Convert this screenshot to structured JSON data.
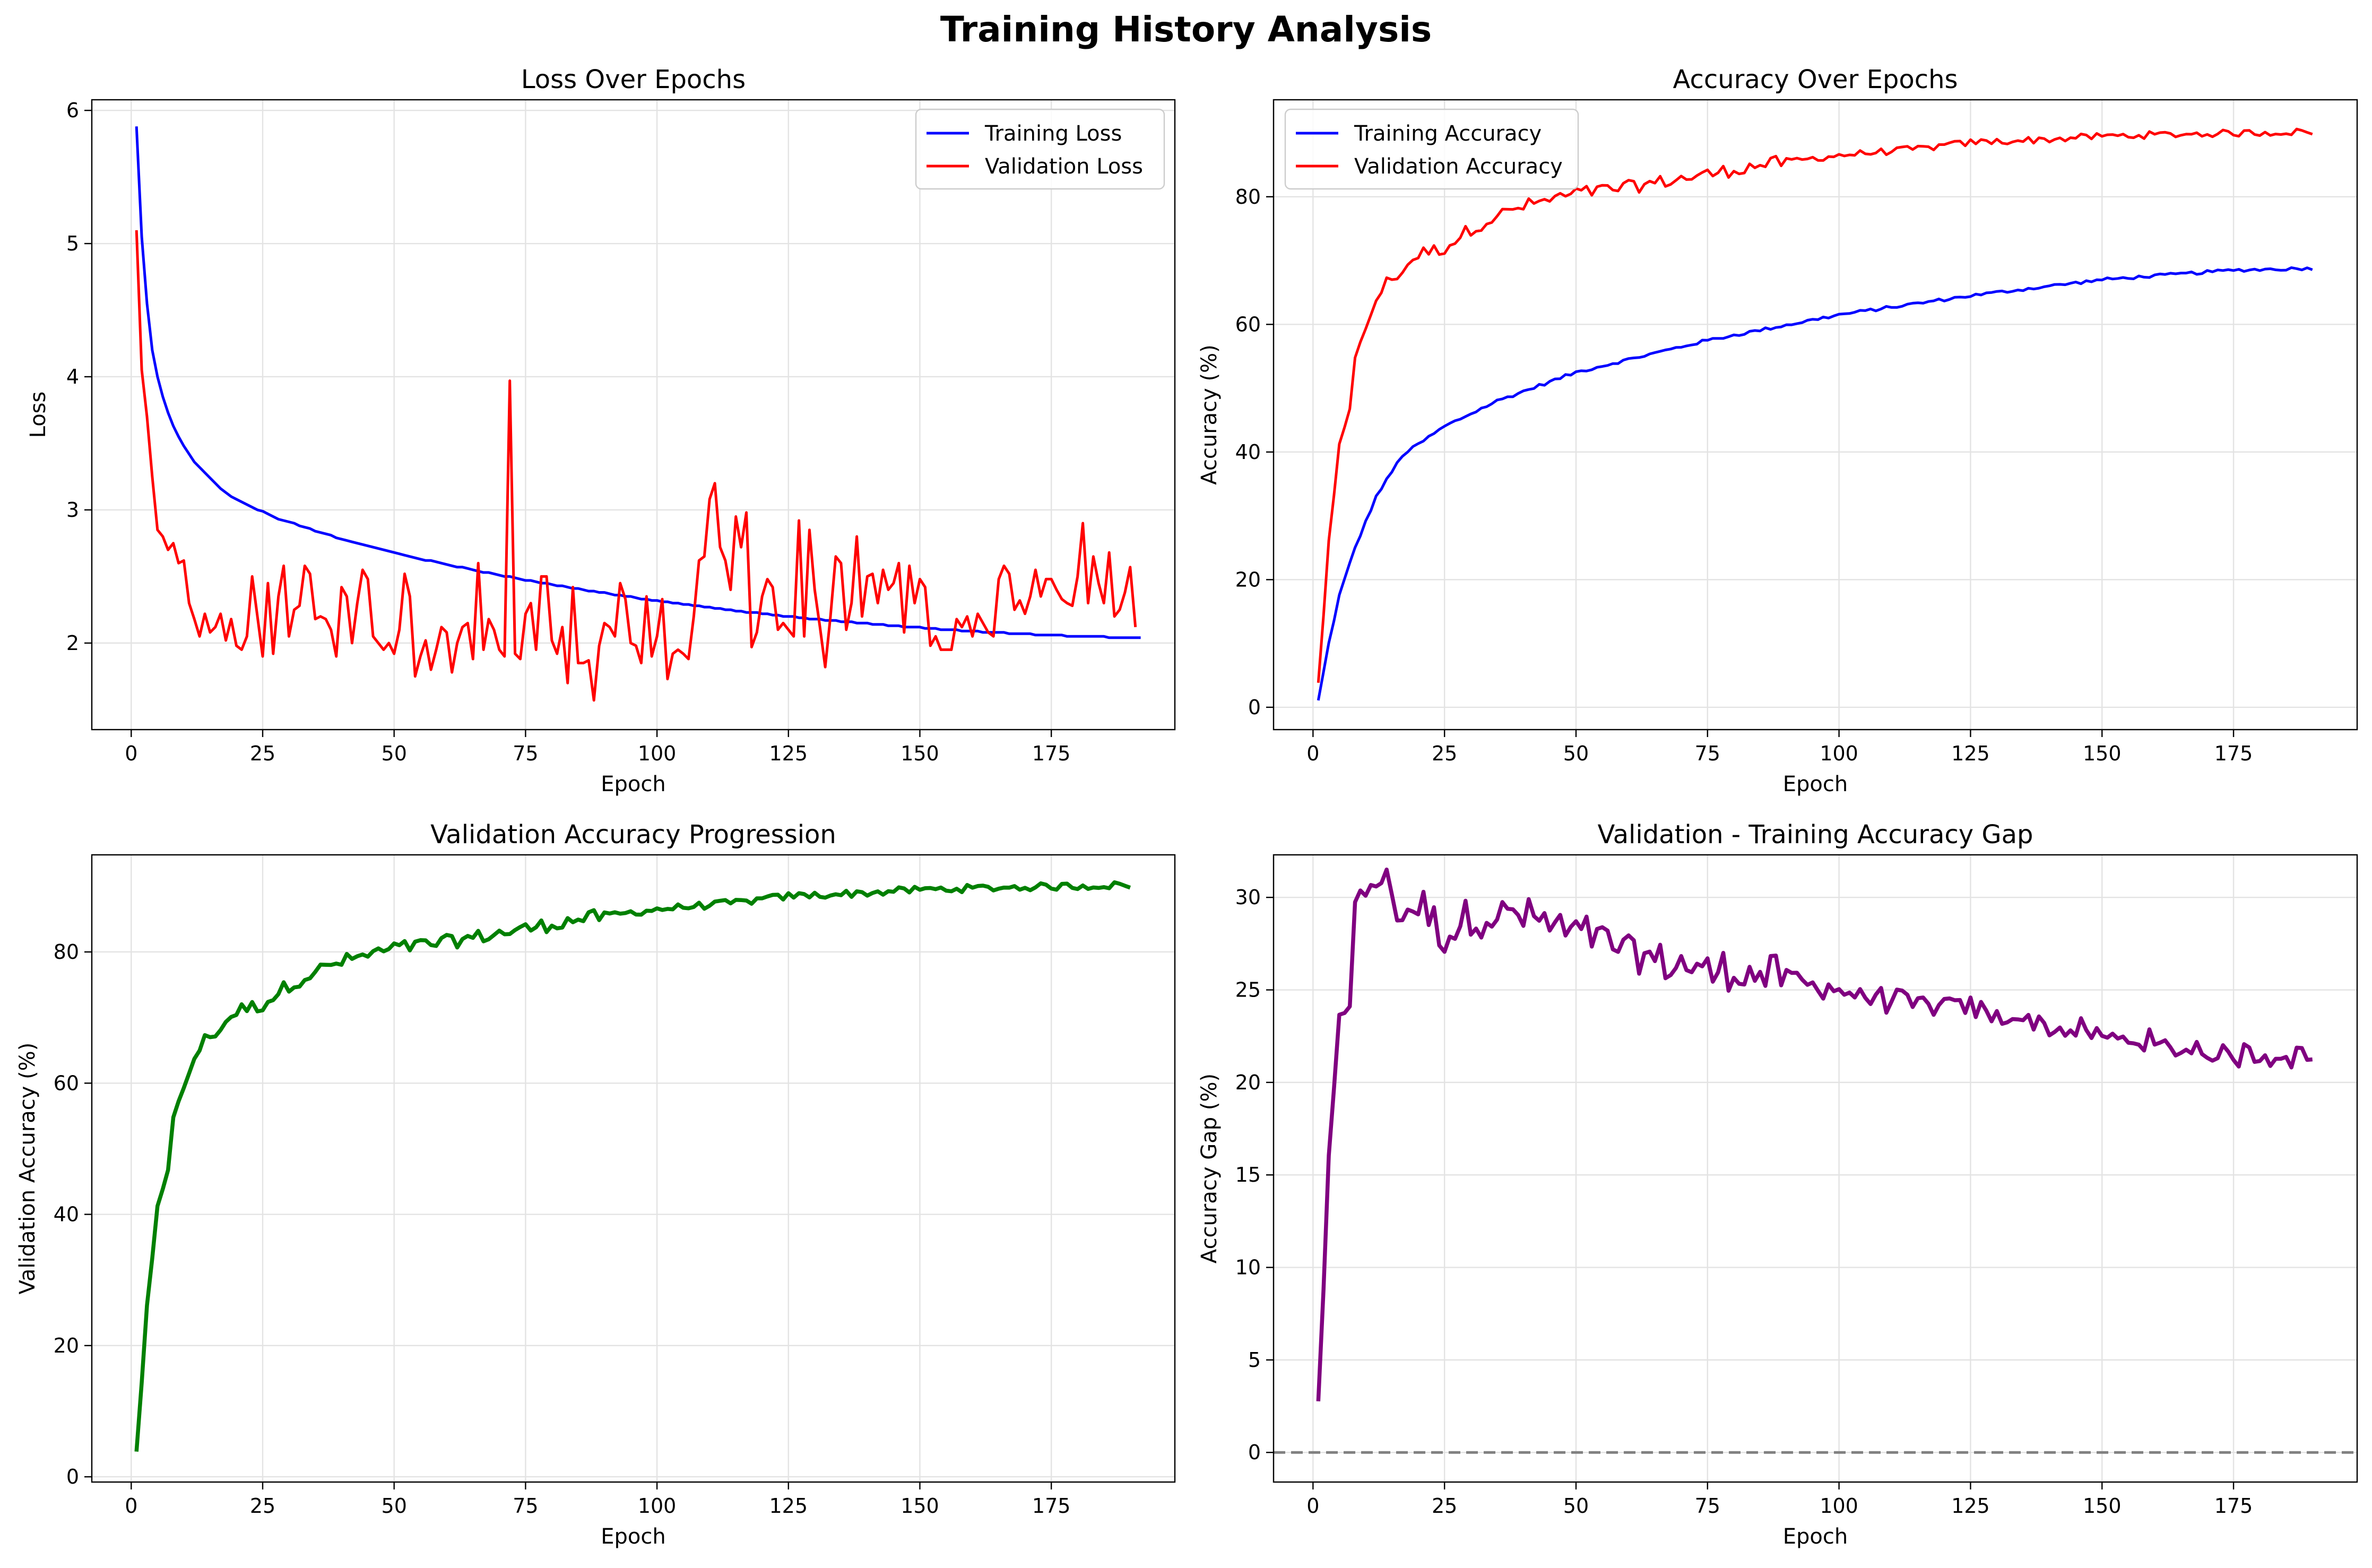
{
  "figure_title": "Training History Analysis",
  "chart_data": [
    {
      "id": "loss",
      "type": "line",
      "title": "Loss Over Epochs",
      "xlabel": "Epoch",
      "ylabel": "Loss",
      "xlim": [
        -7.5,
        198.5
      ],
      "ylim": [
        1.35,
        6.08
      ],
      "xticks": [
        0,
        25,
        50,
        75,
        100,
        125,
        150,
        175
      ],
      "yticks": [
        2,
        3,
        4,
        5,
        6
      ],
      "grid": true,
      "legend": "top-right",
      "series": [
        {
          "name": "Training Loss",
          "color": "#0000ff",
          "width": 2,
          "x_start": 1,
          "y": [
            5.88,
            5.05,
            4.55,
            4.2,
            4.0,
            3.85,
            3.73,
            3.63,
            3.55,
            3.48,
            3.42,
            3.36,
            3.32,
            3.28,
            3.24,
            3.2,
            3.16,
            3.13,
            3.1,
            3.08,
            3.06,
            3.04,
            3.02,
            3.0,
            2.99,
            2.97,
            2.95,
            2.93,
            2.92,
            2.91,
            2.9,
            2.88,
            2.87,
            2.86,
            2.84,
            2.83,
            2.82,
            2.81,
            2.79,
            2.78,
            2.77,
            2.76,
            2.75,
            2.74,
            2.73,
            2.72,
            2.71,
            2.7,
            2.69,
            2.68,
            2.67,
            2.66,
            2.65,
            2.64,
            2.63,
            2.62,
            2.62,
            2.61,
            2.6,
            2.59,
            2.58,
            2.57,
            2.57,
            2.56,
            2.55,
            2.54,
            2.53,
            2.53,
            2.52,
            2.51,
            2.5,
            2.5,
            2.49,
            2.48,
            2.47,
            2.47,
            2.46,
            2.45,
            2.45,
            2.44,
            2.43,
            2.43,
            2.42,
            2.41,
            2.41,
            2.4,
            2.39,
            2.39,
            2.38,
            2.38,
            2.37,
            2.36,
            2.36,
            2.35,
            2.35,
            2.34,
            2.33,
            2.33,
            2.32,
            2.32,
            2.31,
            2.31,
            2.3,
            2.3,
            2.29,
            2.29,
            2.28,
            2.28,
            2.27,
            2.27,
            2.26,
            2.26,
            2.25,
            2.25,
            2.24,
            2.24,
            2.23,
            2.23,
            2.23,
            2.22,
            2.22,
            2.21,
            2.21,
            2.2,
            2.2,
            2.2,
            2.19,
            2.19,
            2.18,
            2.18,
            2.18,
            2.17,
            2.17,
            2.17,
            2.16,
            2.16,
            2.16,
            2.15,
            2.15,
            2.15,
            2.14,
            2.14,
            2.14,
            2.13,
            2.13,
            2.13,
            2.12,
            2.12,
            2.12,
            2.12,
            2.11,
            2.11,
            2.11,
            2.1,
            2.1,
            2.1,
            2.1,
            2.09,
            2.09,
            2.09,
            2.09,
            2.08,
            2.08,
            2.08,
            2.08,
            2.08,
            2.07,
            2.07,
            2.07,
            2.07,
            2.07,
            2.06,
            2.06,
            2.06,
            2.06,
            2.06,
            2.06,
            2.05,
            2.05,
            2.05,
            2.05,
            2.05,
            2.05,
            2.05,
            2.05,
            2.04,
            2.04,
            2.04,
            2.04,
            2.04,
            2.04,
            2.04
          ]
        },
        {
          "name": "Validation Loss",
          "color": "#ff0000",
          "width": 2,
          "x_start": 1,
          "y": [
            5.1,
            4.05,
            3.7,
            3.25,
            2.85,
            2.8,
            2.7,
            2.75,
            2.6,
            2.62,
            2.3,
            2.18,
            2.05,
            2.22,
            2.08,
            2.12,
            2.22,
            2.02,
            2.18,
            1.98,
            1.95,
            2.05,
            2.5,
            2.2,
            1.9,
            2.45,
            1.92,
            2.35,
            2.58,
            2.05,
            2.25,
            2.28,
            2.58,
            2.52,
            2.18,
            2.2,
            2.18,
            2.1,
            1.9,
            2.42,
            2.35,
            2.0,
            2.3,
            2.55,
            2.48,
            2.05,
            2.0,
            1.95,
            2.0,
            1.92,
            2.1,
            2.52,
            2.35,
            1.75,
            1.9,
            2.02,
            1.8,
            1.95,
            2.12,
            2.08,
            1.78,
            2.0,
            2.12,
            2.15,
            1.88,
            2.6,
            1.95,
            2.18,
            2.1,
            1.95,
            1.9,
            3.97,
            1.92,
            1.88,
            2.22,
            2.3,
            1.95,
            2.5,
            2.5,
            2.02,
            1.92,
            2.12,
            1.7,
            2.42,
            1.85,
            1.85,
            1.87,
            1.57,
            1.98,
            2.15,
            2.12,
            2.05,
            2.45,
            2.33,
            2.0,
            1.98,
            1.85,
            2.35,
            1.9,
            2.05,
            2.33,
            1.73,
            1.92,
            1.95,
            1.92,
            1.88,
            2.2,
            2.62,
            2.65,
            3.08,
            3.2,
            2.72,
            2.62,
            2.4,
            2.95,
            2.72,
            2.98,
            1.97,
            2.08,
            2.35,
            2.48,
            2.42,
            2.1,
            2.15,
            2.1,
            2.05,
            2.92,
            2.05,
            2.85,
            2.4,
            2.12,
            1.82,
            2.2,
            2.65,
            2.6,
            2.1,
            2.3,
            2.8,
            2.2,
            2.5,
            2.52,
            2.3,
            2.55,
            2.4,
            2.45,
            2.6,
            2.08,
            2.58,
            2.3,
            2.48,
            2.42,
            1.98,
            2.05,
            1.95,
            1.95,
            1.95,
            2.18,
            2.12,
            2.2,
            2.05,
            2.22,
            2.15,
            2.08,
            2.05,
            2.48,
            2.58,
            2.52,
            2.25,
            2.32,
            2.22,
            2.35,
            2.55,
            2.35,
            2.48,
            2.48,
            2.4,
            2.33,
            2.3,
            2.28,
            2.5,
            2.9,
            2.3,
            2.65,
            2.45,
            2.3,
            2.68,
            2.2,
            2.25,
            2.38,
            2.57,
            2.12
          ]
        }
      ]
    },
    {
      "id": "accuracy",
      "type": "line",
      "title": "Accuracy Over Epochs",
      "xlabel": "Epoch",
      "ylabel": "Accuracy (%)",
      "xlim": [
        -7.5,
        198.5
      ],
      "ylim": [
        -3.5,
        95.2
      ],
      "xticks": [
        0,
        25,
        50,
        75,
        100,
        125,
        150,
        175
      ],
      "yticks": [
        0,
        20,
        40,
        60,
        80
      ],
      "grid": true,
      "legend": "top-left",
      "series": [
        {
          "name": "Training Accuracy",
          "color": "#0000ff",
          "width": 2,
          "formula": "train",
          "x_start": 1
        },
        {
          "name": "Validation Accuracy",
          "color": "#ff0000",
          "width": 2,
          "formula": "val",
          "x_start": 1
        }
      ]
    },
    {
      "id": "val_progression",
      "type": "line",
      "title": "Validation Accuracy Progression",
      "xlabel": "Epoch",
      "ylabel": "Validation Accuracy (%)",
      "xlim": [
        -7.5,
        198.5
      ],
      "ylim": [
        -0.8,
        94.8
      ],
      "xticks": [
        0,
        25,
        50,
        75,
        100,
        125,
        150,
        175
      ],
      "yticks": [
        0,
        20,
        40,
        60,
        80
      ],
      "grid": true,
      "series": [
        {
          "name": "",
          "color": "#008000",
          "width": 3,
          "formula": "val",
          "x_start": 1
        }
      ]
    },
    {
      "id": "gap",
      "type": "line",
      "title": "Validation - Training Accuracy Gap",
      "xlabel": "Epoch",
      "ylabel": "Accuracy Gap (%)",
      "xlim": [
        -7.5,
        198.5
      ],
      "ylim": [
        -1.6,
        32.3
      ],
      "xticks": [
        0,
        25,
        50,
        75,
        100,
        125,
        150,
        175
      ],
      "yticks": [
        0,
        5,
        10,
        15,
        20,
        25,
        30
      ],
      "grid": true,
      "hline": {
        "y": 0,
        "color": "#808080",
        "style": "dashed"
      },
      "series": [
        {
          "name": "",
          "color": "#800080",
          "width": 3,
          "formula": "gap",
          "x_start": 1
        }
      ]
    }
  ]
}
